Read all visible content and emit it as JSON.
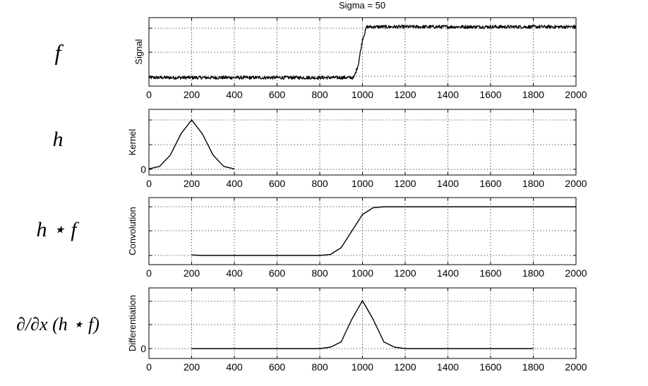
{
  "figure_title": "Sigma = 50",
  "chart_data": [
    {
      "type": "line",
      "row_label": "f",
      "ylabel": "Signal",
      "xlim": [
        0,
        2000
      ],
      "x_ticks": [
        0,
        200,
        400,
        600,
        800,
        1000,
        1200,
        1400,
        1600,
        1800,
        2000
      ],
      "y_tick_labels": [],
      "grid": true,
      "description_of_curve": "noisy step",
      "series": [
        {
          "x": [
            0,
            200,
            400,
            600,
            800,
            960,
            980,
            1000,
            1020,
            1040,
            1200,
            1400,
            1600,
            1800,
            2000
          ],
          "y": [
            0,
            0,
            0,
            0,
            0,
            0,
            0.25,
            0.75,
            1,
            1,
            1,
            1,
            1,
            1,
            1
          ]
        }
      ],
      "ylim": [
        -0.1,
        1.15
      ],
      "noise": 0.015
    },
    {
      "type": "line",
      "row_label": "h",
      "ylabel": "Kernel",
      "xlim": [
        0,
        2000
      ],
      "x_ticks": [
        0,
        200,
        400,
        600,
        800,
        1000,
        1200,
        1400,
        1600,
        1800,
        2000
      ],
      "y_tick_labels": [
        "0"
      ],
      "grid": true,
      "series": [
        {
          "x": [
            0,
            50,
            100,
            150,
            200,
            250,
            300,
            350,
            400
          ],
          "y": [
            0.01,
            0.06,
            0.29,
            0.72,
            1.0,
            0.72,
            0.29,
            0.06,
            0.01
          ]
        }
      ],
      "ylim": [
        -0.05,
        1.05
      ]
    },
    {
      "type": "line",
      "row_label": "h ⋆ f",
      "ylabel": "Convolution",
      "xlim": [
        0,
        2000
      ],
      "x_ticks": [
        0,
        200,
        400,
        600,
        800,
        1000,
        1200,
        1400,
        1600,
        1800,
        2000
      ],
      "y_tick_labels": [],
      "grid": true,
      "series": [
        {
          "x": [
            200,
            250,
            400,
            600,
            800,
            850,
            900,
            950,
            1000,
            1050,
            1100,
            1150,
            1200,
            1400,
            1600,
            1800,
            2000
          ],
          "y": [
            0.01,
            0,
            0,
            0,
            0,
            0.02,
            0.16,
            0.5,
            0.84,
            0.98,
            1.0,
            1.0,
            1.0,
            1.0,
            1.0,
            1.0,
            1.0
          ]
        }
      ],
      "ylim": [
        -0.1,
        1.1
      ]
    },
    {
      "type": "line",
      "row_label": "∂/∂x (h ⋆ f)",
      "ylabel": "Differentiation",
      "xlim": [
        0,
        2000
      ],
      "x_ticks": [
        0,
        200,
        400,
        600,
        800,
        1000,
        1200,
        1400,
        1600,
        1800,
        2000
      ],
      "y_tick_labels": [
        "0"
      ],
      "grid": true,
      "series": [
        {
          "x": [
            200,
            800,
            850,
            900,
            950,
            1000,
            1050,
            1100,
            1150,
            1200,
            1800
          ],
          "y": [
            0,
            0.0,
            0.03,
            0.14,
            0.61,
            1.0,
            0.61,
            0.14,
            0.03,
            0.0,
            0
          ]
        }
      ],
      "ylim": [
        -0.1,
        1.05
      ]
    }
  ]
}
